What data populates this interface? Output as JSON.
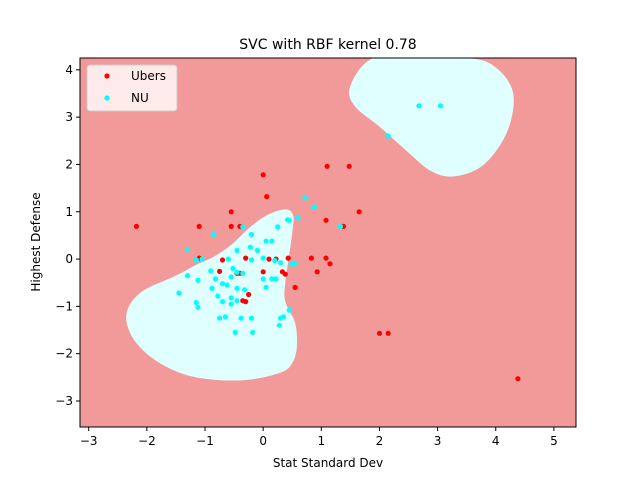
{
  "chart_data": {
    "type": "scatter",
    "title": "SVC with RBF kernel 0.78",
    "xlabel": "Stat Standard Dev",
    "ylabel": "Highest Defense",
    "xlim": [
      -3.15,
      5.38
    ],
    "ylim": [
      -3.55,
      4.25
    ],
    "xticks": [
      -3,
      -2,
      -1,
      0,
      1,
      2,
      3,
      4,
      5
    ],
    "yticks": [
      -3,
      -2,
      -1,
      0,
      1,
      2,
      3,
      4
    ],
    "grid": false,
    "legend_position": "top-left",
    "background_region_color": "#f29a9a",
    "decision_region_color": "#e0ffff",
    "decision_regions": [
      {
        "class": "NU",
        "boundary": [
          [
            0.4,
            1.05
          ],
          [
            0.1,
            0.95
          ],
          [
            -0.2,
            0.7
          ],
          [
            -0.55,
            0.3
          ],
          [
            -0.85,
            0.05
          ],
          [
            -1.15,
            -0.12
          ],
          [
            -1.5,
            -0.35
          ],
          [
            -2.1,
            -0.7
          ],
          [
            -2.35,
            -1.15
          ],
          [
            -2.25,
            -1.65
          ],
          [
            -1.9,
            -2.1
          ],
          [
            -1.4,
            -2.42
          ],
          [
            -0.85,
            -2.55
          ],
          [
            -0.25,
            -2.55
          ],
          [
            0.3,
            -2.4
          ],
          [
            0.5,
            -2.2
          ],
          [
            0.58,
            -1.85
          ],
          [
            0.55,
            -1.35
          ],
          [
            0.38,
            -0.9
          ],
          [
            0.38,
            -0.5
          ],
          [
            0.45,
            0.1
          ],
          [
            0.5,
            0.55
          ],
          [
            0.52,
            0.9
          ]
        ]
      },
      {
        "class": "NU",
        "boundary": [
          [
            2.2,
            4.25
          ],
          [
            3.5,
            4.25
          ],
          [
            4.0,
            4.05
          ],
          [
            4.3,
            3.5
          ],
          [
            4.2,
            2.7
          ],
          [
            3.8,
            2.0
          ],
          [
            3.3,
            1.75
          ],
          [
            2.9,
            1.85
          ],
          [
            2.5,
            2.25
          ],
          [
            2.0,
            2.8
          ],
          [
            1.6,
            3.2
          ],
          [
            1.48,
            3.55
          ],
          [
            1.65,
            4.0
          ],
          [
            1.9,
            4.25
          ]
        ]
      }
    ],
    "series": [
      {
        "name": "Ubers",
        "color": "#ff0000",
        "points": [
          [
            -2.18,
            0.69
          ],
          [
            0.0,
            1.78
          ],
          [
            0.06,
            1.32
          ],
          [
            1.1,
            1.96
          ],
          [
            1.48,
            1.96
          ],
          [
            1.65,
            1.0
          ],
          [
            1.08,
            0.82
          ],
          [
            -0.55,
            1.0
          ],
          [
            -0.55,
            0.69
          ],
          [
            -0.4,
            0.69
          ],
          [
            -1.1,
            0.69
          ],
          [
            1.38,
            0.69
          ],
          [
            -1.1,
            0.02
          ],
          [
            -0.3,
            0.02
          ],
          [
            0.1,
            0.0
          ],
          [
            0.22,
            0.0
          ],
          [
            0.43,
            0.02
          ],
          [
            0.83,
            0.02
          ],
          [
            1.08,
            0.02
          ],
          [
            1.15,
            -0.1
          ],
          [
            -0.7,
            -0.02
          ],
          [
            -0.75,
            -0.26
          ],
          [
            -0.45,
            -0.3
          ],
          [
            -0.4,
            -0.3
          ],
          [
            0.0,
            -0.27
          ],
          [
            0.33,
            -0.27
          ],
          [
            0.38,
            -0.32
          ],
          [
            0.93,
            -0.27
          ],
          [
            0.55,
            -0.6
          ],
          [
            -0.25,
            -0.75
          ],
          [
            -0.35,
            -0.88
          ],
          [
            -0.3,
            -0.9
          ],
          [
            2.0,
            -1.57
          ],
          [
            2.15,
            -1.57
          ],
          [
            4.38,
            -2.53
          ]
        ]
      },
      {
        "name": "NU",
        "color": "#00ffff",
        "points": [
          [
            2.68,
            3.24
          ],
          [
            3.05,
            3.24
          ],
          [
            2.15,
            2.6
          ],
          [
            0.72,
            1.3
          ],
          [
            0.88,
            1.1
          ],
          [
            0.42,
            0.83
          ],
          [
            0.45,
            0.82
          ],
          [
            1.33,
            0.69
          ],
          [
            -0.35,
            0.68
          ],
          [
            -0.85,
            0.52
          ],
          [
            -0.2,
            0.52
          ],
          [
            0.05,
            0.38
          ],
          [
            0.15,
            0.38
          ],
          [
            0.6,
            0.87
          ],
          [
            -1.3,
            0.2
          ],
          [
            -0.45,
            0.18
          ],
          [
            -0.22,
            0.25
          ],
          [
            -0.1,
            0.18
          ],
          [
            0.25,
            0.68
          ],
          [
            -1.15,
            -0.02
          ],
          [
            -1.05,
            0.0
          ],
          [
            -0.6,
            0.0
          ],
          [
            -0.2,
            -0.02
          ],
          [
            0.0,
            0.02
          ],
          [
            0.2,
            -0.03
          ],
          [
            0.3,
            -0.08
          ],
          [
            0.48,
            -0.1
          ],
          [
            0.55,
            -0.1
          ],
          [
            -0.52,
            -0.2
          ],
          [
            -0.45,
            -0.28
          ],
          [
            -0.55,
            -0.38
          ],
          [
            0.0,
            -0.42
          ],
          [
            0.15,
            -0.42
          ],
          [
            0.22,
            -0.42
          ],
          [
            -1.3,
            -0.35
          ],
          [
            -1.12,
            -0.45
          ],
          [
            -0.9,
            -0.25
          ],
          [
            -0.82,
            -0.42
          ],
          [
            -0.7,
            -0.52
          ],
          [
            -0.62,
            -0.55
          ],
          [
            -0.45,
            -0.62
          ],
          [
            -0.32,
            -0.65
          ],
          [
            0.05,
            -0.6
          ],
          [
            -1.45,
            -0.72
          ],
          [
            -0.88,
            -0.62
          ],
          [
            -0.78,
            -0.78
          ],
          [
            -0.55,
            -0.82
          ],
          [
            -0.45,
            -0.88
          ],
          [
            -0.55,
            -0.95
          ],
          [
            -0.7,
            -0.9
          ],
          [
            -1.15,
            -0.92
          ],
          [
            -1.12,
            -1.02
          ],
          [
            -0.75,
            -1.25
          ],
          [
            -0.65,
            -1.22
          ],
          [
            -0.38,
            -1.25
          ],
          [
            -0.2,
            -1.25
          ],
          [
            0.3,
            -1.25
          ],
          [
            0.35,
            -1.22
          ],
          [
            0.45,
            -1.08
          ],
          [
            0.28,
            -1.4
          ],
          [
            -0.48,
            -1.55
          ],
          [
            -0.18,
            -1.55
          ],
          [
            -0.35,
            -0.3
          ]
        ]
      }
    ]
  }
}
